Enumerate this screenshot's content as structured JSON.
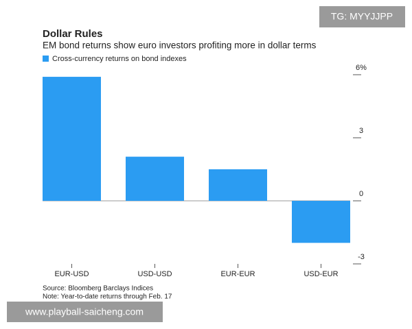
{
  "chart_data": {
    "type": "bar",
    "title": "Dollar Rules",
    "subtitle": "EM bond returns show euro investors profiting more in dollar terms",
    "legend": "Cross-currency returns on bond indexes",
    "categories": [
      "EUR-USD",
      "USD-USD",
      "EUR-EUR",
      "USD-EUR"
    ],
    "values": [
      5.9,
      2.1,
      1.5,
      -2.0
    ],
    "color": "#2b9cf2",
    "ylim": [
      -3,
      6
    ],
    "yticks": [
      {
        "value": 6,
        "label": "6%"
      },
      3,
      0,
      -3
    ],
    "source": "Source: Bloomberg Barclays Indices",
    "note": "Note: Year-to-date returns through Feb. 17"
  },
  "watermarks": {
    "top": "TG: MYYJJPP",
    "bottom": "www.playball-saicheng.com"
  }
}
